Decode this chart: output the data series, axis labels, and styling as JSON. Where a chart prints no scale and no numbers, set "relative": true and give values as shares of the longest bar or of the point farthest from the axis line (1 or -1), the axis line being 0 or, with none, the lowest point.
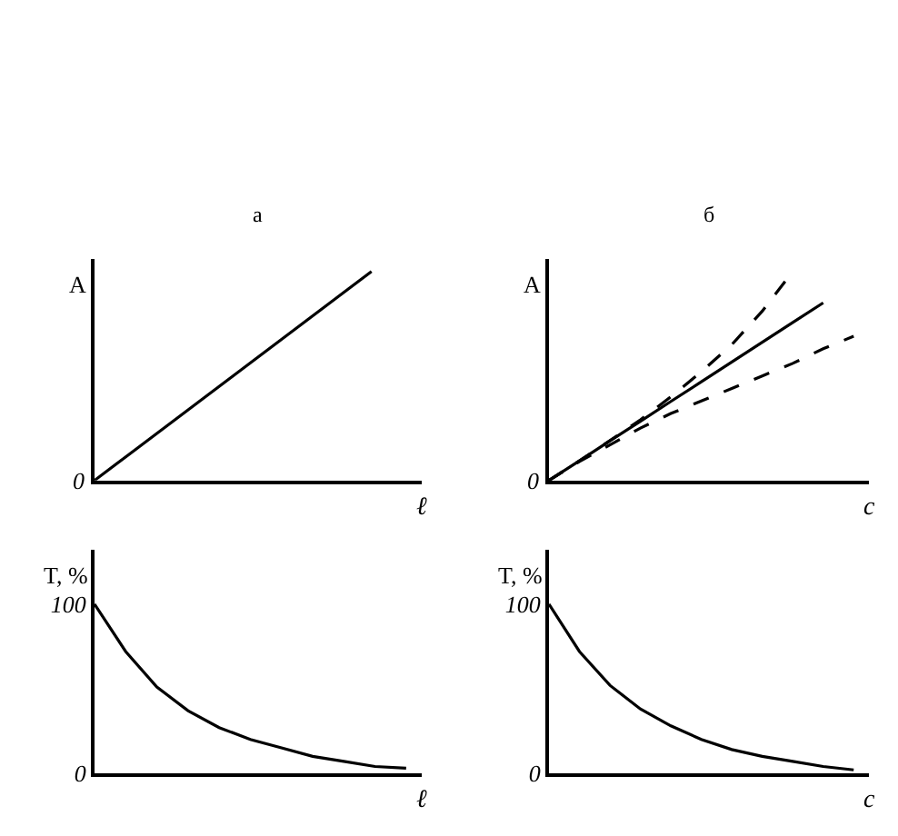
{
  "chart_data": [
    {
      "type": "line",
      "title": "а",
      "ylabel": "A",
      "xlabel": "ℓ",
      "relative": true,
      "annotations": [
        "0"
      ],
      "categories": [
        null,
        null,
        null,
        null,
        null,
        null,
        null,
        null,
        null,
        null
      ],
      "series": [
        {
          "color": "#000000",
          "line_style": "solid",
          "values": [
            0,
            0.125,
            0.25,
            0.375,
            0.5,
            0.625,
            0.75,
            0.875,
            1,
            null
          ]
        }
      ]
    },
    {
      "type": "line",
      "title": "б",
      "ylabel": "A",
      "xlabel": "c",
      "relative": true,
      "annotations": [
        "0"
      ],
      "categories": [
        null,
        null,
        null,
        null,
        null,
        null,
        null,
        null,
        null,
        null,
        null
      ],
      "series": [
        {
          "color": "#000000",
          "line_style": "solid",
          "values": [
            0,
            0.094,
            0.189,
            0.283,
            0.378,
            0.472,
            0.567,
            0.661,
            0.756,
            0.85,
            null
          ]
        },
        {
          "color": "#000000",
          "line_style": "dashed",
          "values": [
            0,
            0.094,
            0.19,
            0.29,
            0.4,
            0.52,
            0.65,
            0.81,
            1,
            null,
            null
          ]
        },
        {
          "color": "#000000",
          "line_style": "dashed",
          "values": [
            0,
            0.09,
            0.17,
            0.25,
            0.32,
            0.38,
            0.44,
            0.5,
            0.56,
            0.63,
            0.69
          ]
        }
      ]
    },
    {
      "type": "line",
      "ylabel": "T, %",
      "xlabel": "ℓ",
      "ylim": [
        0,
        132
      ],
      "yticks": [
        0,
        100
      ],
      "categories": [
        null,
        null,
        null,
        null,
        null,
        null,
        null,
        null,
        null,
        null,
        null
      ],
      "series": [
        {
          "color": "#000000",
          "line_style": "solid",
          "values": [
            100,
            72,
            51,
            37,
            27,
            20,
            15,
            10,
            7,
            4,
            3
          ]
        }
      ]
    },
    {
      "type": "line",
      "ylabel": "T, %",
      "xlabel": "c",
      "ylim": [
        0,
        132
      ],
      "yticks": [
        0,
        100
      ],
      "categories": [
        null,
        null,
        null,
        null,
        null,
        null,
        null,
        null,
        null,
        null,
        null
      ],
      "series": [
        {
          "color": "#000000",
          "line_style": "solid",
          "values": [
            100,
            72,
            52,
            38,
            28,
            20,
            14,
            10,
            7,
            4,
            2
          ]
        }
      ]
    }
  ]
}
